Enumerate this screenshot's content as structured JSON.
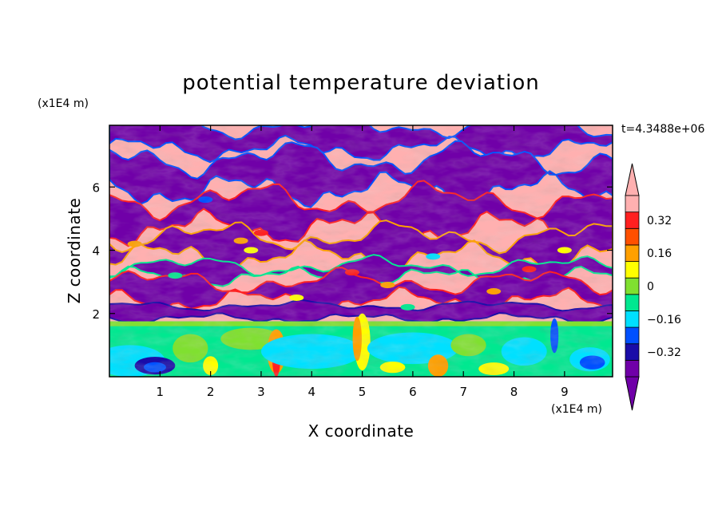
{
  "chart_data": {
    "type": "heatmap",
    "title": "potential temperature deviation",
    "xlabel": "X coordinate",
    "ylabel": "Z coordinate",
    "x_units": "(x1E4 m)",
    "y_units": "(x1E4 m)",
    "time_label": "t=4.3488e+06",
    "xlim": [
      0,
      9.95
    ],
    "ylim": [
      0,
      7.95
    ],
    "x_ticks": [
      {
        "value": 1,
        "label": "1"
      },
      {
        "value": 2,
        "label": "2"
      },
      {
        "value": 3,
        "label": "3"
      },
      {
        "value": 4,
        "label": "4"
      },
      {
        "value": 5,
        "label": "5"
      },
      {
        "value": 6,
        "label": "6"
      },
      {
        "value": 7,
        "label": "7"
      },
      {
        "value": 8,
        "label": "8"
      },
      {
        "value": 9,
        "label": "9"
      }
    ],
    "y_ticks": [
      {
        "value": 2,
        "label": "2"
      },
      {
        "value": 4,
        "label": "4"
      },
      {
        "value": 6,
        "label": "6"
      }
    ],
    "colorbar": {
      "levels": [
        -0.4,
        -0.32,
        -0.24,
        -0.16,
        -0.08,
        0,
        0.08,
        0.16,
        0.24,
        0.32,
        0.4
      ],
      "colors": [
        "#7000a8",
        "#1a0ca8",
        "#0050ff",
        "#00e0ff",
        "#00e890",
        "#80e030",
        "#ffff00",
        "#ffa000",
        "#ff5000",
        "#ff2020",
        "#ffb0b0"
      ],
      "under_color": "#7000a8",
      "over_color": "#ffb0b0",
      "labels": [
        {
          "value": 0.32,
          "label": "0.32"
        },
        {
          "value": 0.16,
          "label": "0.16"
        },
        {
          "value": 0,
          "label": "0"
        },
        {
          "value": -0.16,
          "label": "−0.16"
        },
        {
          "value": -0.32,
          "label": "−0.32"
        }
      ]
    }
  }
}
